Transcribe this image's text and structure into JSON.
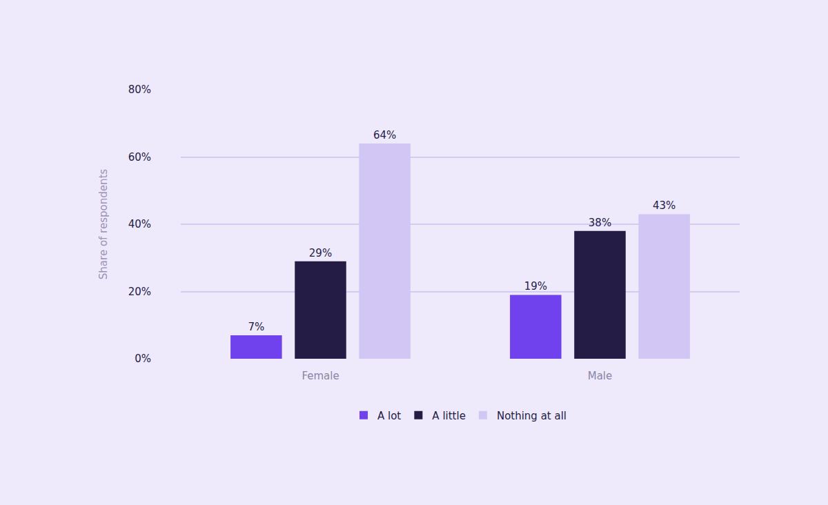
{
  "chart_data": {
    "type": "bar",
    "categories": [
      "Female",
      "Male"
    ],
    "series": [
      {
        "name": "A lot",
        "color": "#6f42ee",
        "values": [
          7,
          19
        ],
        "value_labels": [
          "7%",
          "19%"
        ]
      },
      {
        "name": "A little",
        "color": "#241c45",
        "values": [
          29,
          38
        ],
        "value_labels": [
          "29%",
          "38%"
        ]
      },
      {
        "name": "Nothing at all",
        "color": "#d2c6f5",
        "values": [
          64,
          43
        ],
        "value_labels": [
          "64%",
          "43%"
        ]
      }
    ],
    "y_label": "Share of respondents",
    "ylim": [
      0,
      80
    ],
    "yticks": [
      {
        "value": 0,
        "label": "0%"
      },
      {
        "value": 20,
        "label": "20%"
      },
      {
        "value": 40,
        "label": "40%"
      },
      {
        "value": 60,
        "label": "60%"
      },
      {
        "value": 80,
        "label": "80%"
      }
    ],
    "grid": true,
    "legend": "bottom",
    "data_labels": true
  }
}
